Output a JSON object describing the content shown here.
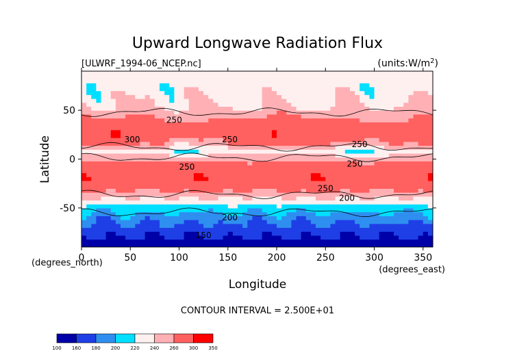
{
  "chart_data": {
    "type": "heatmap",
    "title": "Upward Longwave Radiation Flux",
    "subtitle_left": "[ULWRF_1994-06_NCEP.nc]",
    "subtitle_right": "(units:W/m^2)",
    "xlabel": "Longitude",
    "ylabel": "Latitude",
    "x_unit_label": "(degrees_east)",
    "y_unit_label": "(degrees_north)",
    "xlim": [
      0,
      360
    ],
    "ylim": [
      -90,
      90
    ],
    "x_ticks": [
      0,
      50,
      100,
      150,
      200,
      250,
      300,
      350
    ],
    "y_ticks": [
      -50,
      0,
      50
    ],
    "contour_interval_text": "CONTOUR INTERVAL = 2.500E+01",
    "contour_labels": [
      {
        "text": "250",
        "x": 95,
        "y": 40
      },
      {
        "text": "300",
        "x": 52,
        "y": 20
      },
      {
        "text": "250",
        "x": 152,
        "y": 20
      },
      {
        "text": "250",
        "x": 108,
        "y": -8
      },
      {
        "text": "250",
        "x": 280,
        "y": -5
      },
      {
        "text": "250",
        "x": 285,
        "y": 15
      },
      {
        "text": "250",
        "x": 250,
        "y": -30
      },
      {
        "text": "200",
        "x": 272,
        "y": -40
      },
      {
        "text": "200",
        "x": 152,
        "y": -60
      },
      {
        "text": "150",
        "x": 125,
        "y": -78
      }
    ],
    "colorbar": {
      "levels": [
        100,
        160,
        180,
        200,
        220,
        240,
        260,
        300,
        350
      ],
      "colors": [
        "#0000a8",
        "#1f3fe6",
        "#2f8ff0",
        "#00dfff",
        "#fff0f0",
        "#ffb0b4",
        "#ff6060",
        "#ff0000"
      ]
    },
    "zonal_profile": [
      {
        "lat": -90,
        "value": 150
      },
      {
        "lat": -75,
        "value": 165
      },
      {
        "lat": -62,
        "value": 185
      },
      {
        "lat": -52,
        "value": 205
      },
      {
        "lat": -45,
        "value": 225
      },
      {
        "lat": -38,
        "value": 245
      },
      {
        "lat": -30,
        "value": 268
      },
      {
        "lat": -20,
        "value": 290
      },
      {
        "lat": -10,
        "value": 280
      },
      {
        "lat": 0,
        "value": 255
      },
      {
        "lat": 8,
        "value": 232
      },
      {
        "lat": 15,
        "value": 260
      },
      {
        "lat": 25,
        "value": 285
      },
      {
        "lat": 35,
        "value": 275
      },
      {
        "lat": 45,
        "value": 255
      },
      {
        "lat": 55,
        "value": 238
      },
      {
        "lat": 65,
        "value": 235
      },
      {
        "lat": 75,
        "value": 228
      },
      {
        "lat": 85,
        "value": 235
      },
      {
        "lat": 90,
        "value": 238
      }
    ]
  }
}
